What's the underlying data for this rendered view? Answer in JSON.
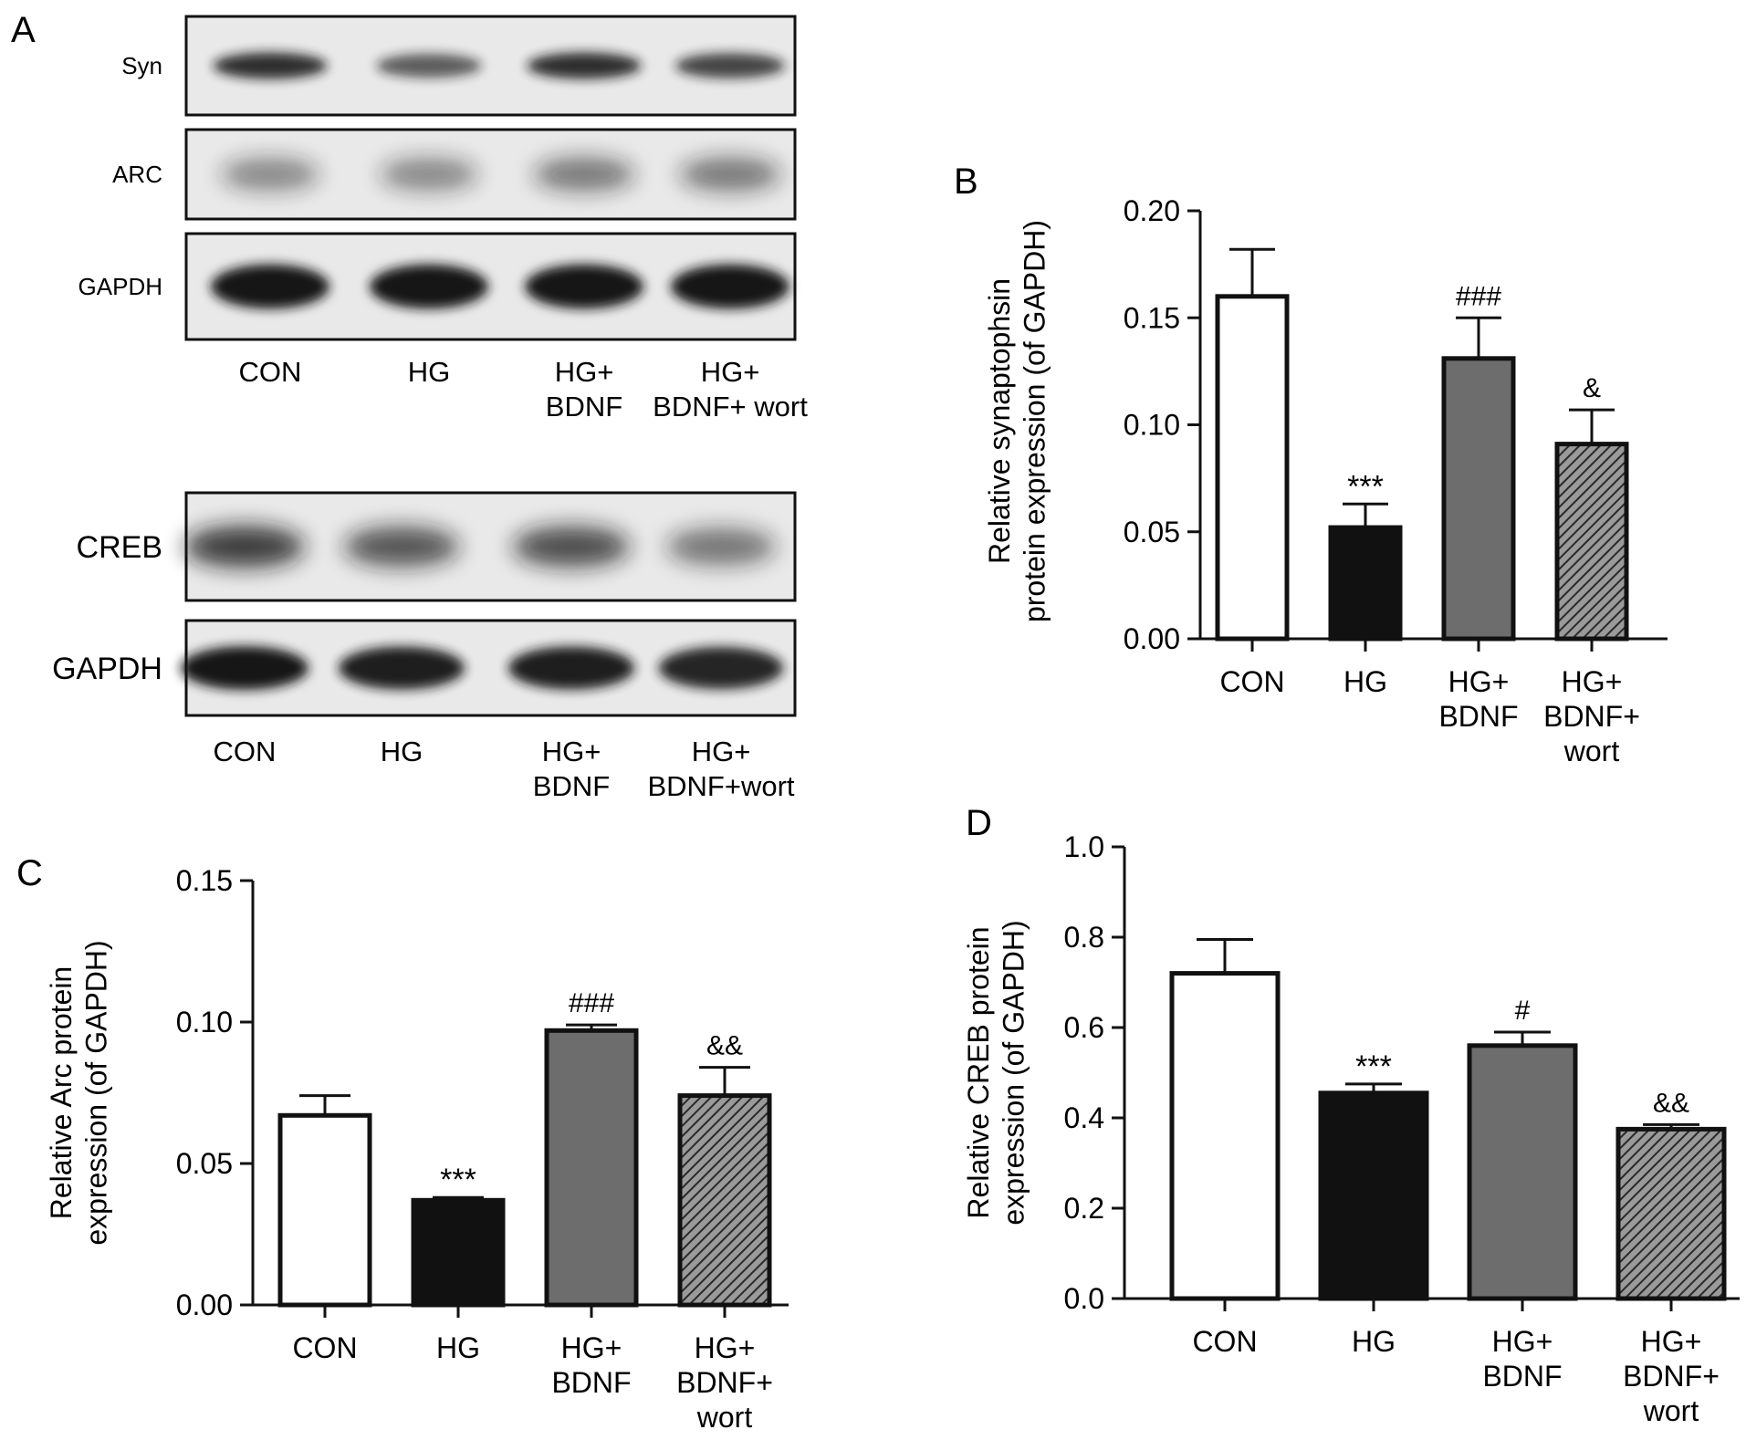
{
  "panel_a": {
    "label": "A",
    "blot1": {
      "rows": [
        "Syn",
        "ARC",
        "GAPDH"
      ],
      "lanes": [
        "CON",
        "HG",
        "HG+\nBDNF",
        "HG+\nBDNF+ wort"
      ],
      "band_intensity": [
        [
          0.85,
          0.55,
          0.85,
          0.7
        ],
        [
          0.3,
          0.3,
          0.4,
          0.4
        ],
        [
          1.0,
          1.0,
          1.0,
          1.0
        ]
      ]
    },
    "blot2": {
      "rows": [
        "CREB",
        "GAPDH"
      ],
      "lanes": [
        "CON",
        "HG",
        "HG+\nBDNF",
        "HG+\nBDNF+wort"
      ],
      "band_intensity": [
        [
          0.75,
          0.6,
          0.65,
          0.4
        ],
        [
          1.0,
          0.95,
          0.95,
          0.9
        ]
      ]
    }
  },
  "chart_data": [
    {
      "panel": "B",
      "type": "bar",
      "categories": [
        "CON",
        "HG",
        "HG+\nBDNF",
        "HG+\nBDNF+\nwort"
      ],
      "values": [
        0.16,
        0.052,
        0.131,
        0.091
      ],
      "errors": [
        0.022,
        0.011,
        0.019,
        0.016
      ],
      "annotations": [
        "",
        "***",
        "###",
        "&"
      ],
      "ylabel": "Relative synaptophsin\nprotein expression (of GAPDH)",
      "ylim": [
        0,
        0.2
      ],
      "yticks": [
        "0.00",
        "0.05",
        "0.10",
        "0.15",
        "0.20"
      ],
      "fills": [
        "white",
        "black",
        "gray",
        "hatch"
      ]
    },
    {
      "panel": "C",
      "type": "bar",
      "categories": [
        "CON",
        "HG",
        "HG+\nBDNF",
        "HG+\nBDNF+\nwort"
      ],
      "values": [
        0.067,
        0.037,
        0.097,
        0.074
      ],
      "errors": [
        0.007,
        0.001,
        0.002,
        0.01
      ],
      "annotations": [
        "",
        "***",
        "###",
        "&&"
      ],
      "ylabel": "Relative Arc protein\nexpression (of GAPDH)",
      "ylim": [
        0,
        0.15
      ],
      "yticks": [
        "0.00",
        "0.05",
        "0.10",
        "0.15"
      ],
      "fills": [
        "white",
        "black",
        "gray",
        "hatch"
      ]
    },
    {
      "panel": "D",
      "type": "bar",
      "categories": [
        "CON",
        "HG",
        "HG+\nBDNF",
        "HG+\nBDNF+\nwort"
      ],
      "values": [
        0.72,
        0.455,
        0.56,
        0.375
      ],
      "errors": [
        0.075,
        0.02,
        0.03,
        0.01
      ],
      "annotations": [
        "",
        "***",
        "#",
        "&&"
      ],
      "ylabel": "Relative CREB protein\nexpression (of GAPDH)",
      "ylim": [
        0,
        1.0
      ],
      "yticks": [
        "0.0",
        "0.2",
        "0.4",
        "0.6",
        "0.8",
        "1.0"
      ],
      "fills": [
        "white",
        "black",
        "gray",
        "hatch"
      ]
    }
  ],
  "colors": {
    "black": "#111111",
    "gray": "#6d6d6d",
    "white": "#ffffff",
    "hatch_bg": "#9a9a9a",
    "hatch_line": "#2a2a2a",
    "blot_bg": "#e9e9e9",
    "band": "#141414"
  }
}
